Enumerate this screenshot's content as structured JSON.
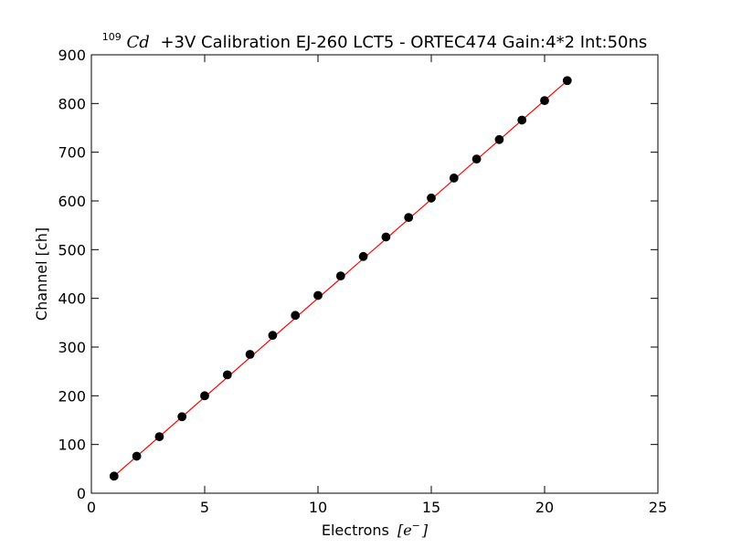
{
  "chart_data": {
    "type": "scatter",
    "title": {
      "sup": "109",
      "element": "Cd",
      "text": "+3V Calibration EJ-260 LCT5 - ORTEC474 Gain:4*2 Int:50ns"
    },
    "xlabel": {
      "text": "Electrons",
      "unit": "e",
      "unit_sup": "−"
    },
    "ylabel": "Channel [ch]",
    "xlim": [
      0,
      25
    ],
    "ylim": [
      0,
      900
    ],
    "xticks": [
      0,
      5,
      10,
      15,
      20,
      25
    ],
    "yticks": [
      0,
      100,
      200,
      300,
      400,
      500,
      600,
      700,
      800,
      900
    ],
    "grid": false,
    "series": [
      {
        "kind": "points",
        "color": "#000000",
        "x": [
          1,
          2,
          3,
          4,
          5,
          6,
          7,
          8,
          9,
          10,
          11,
          12,
          13,
          14,
          15,
          16,
          17,
          18,
          19,
          20,
          21
        ],
        "y": [
          35,
          76,
          116,
          157,
          200,
          243,
          285,
          324,
          365,
          406,
          446,
          486,
          526,
          566,
          606,
          647,
          686,
          726,
          766,
          806,
          847
        ]
      },
      {
        "kind": "fit-line",
        "color": "#ff0000",
        "x": [
          1,
          21
        ],
        "y": [
          35,
          847
        ]
      }
    ]
  }
}
